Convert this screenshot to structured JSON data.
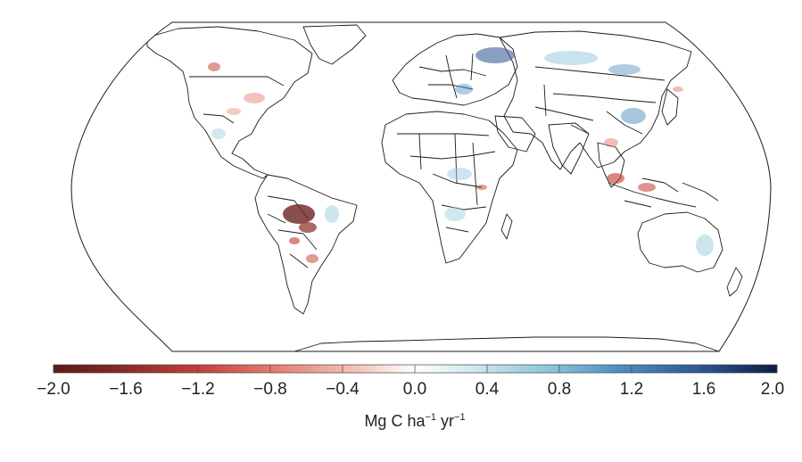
{
  "colorbar": {
    "ticks": [
      "−2.0",
      "−1.6",
      "−1.2",
      "−0.8",
      "−0.4",
      "0.0",
      "0.4",
      "0.8",
      "1.2",
      "1.6",
      "2.0"
    ],
    "range": [
      -2.0,
      2.0
    ],
    "unit": {
      "base1": "Mg C ha",
      "sup1": "−1",
      "base2": " yr",
      "sup2": "−1"
    },
    "colors": [
      "#5b1a18",
      "#8c2a26",
      "#c4403a",
      "#e27a6a",
      "#f3c4bb",
      "#ffffff",
      "#cfe8ee",
      "#8ec7dd",
      "#4f8fc0",
      "#2a5494",
      "#0f1d40"
    ]
  },
  "map": {
    "projection": "Robinson-like world map",
    "colors": {
      "land_outline": "#1a1a1a",
      "ocean": "#ffffff",
      "loss": "#c0392b",
      "strong_loss": "#6b2323",
      "gain": "#9ccbe0",
      "strong_gain": "#3d5f9a"
    }
  }
}
